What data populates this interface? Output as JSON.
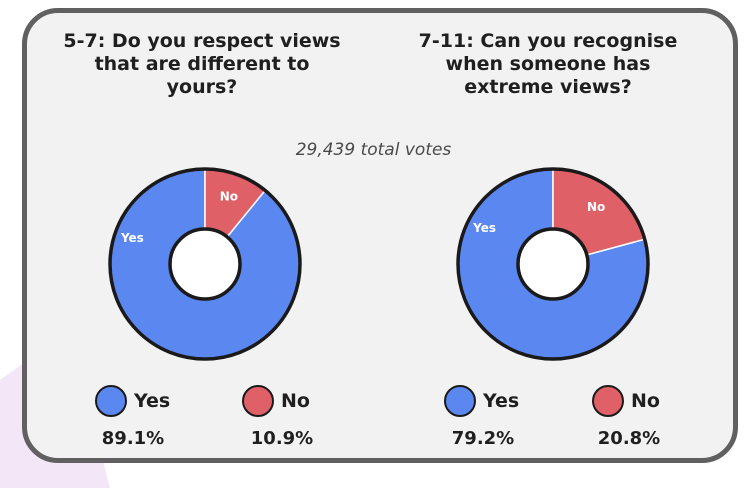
{
  "total_votes": "29,439 total votes",
  "colors": {
    "yes": "#5b87f0",
    "no": "#e06068",
    "card_background": "#f2f2f2",
    "card_border": "#606060"
  },
  "chart_data": [
    {
      "type": "pie",
      "donut": true,
      "title": "5-7: Do you respect views that are different to yours?",
      "slices": [
        {
          "label": "Yes",
          "value": 89.1,
          "value_label": "89.1%",
          "color": "#5b87f0"
        },
        {
          "label": "No",
          "value": 10.9,
          "value_label": "10.9%",
          "color": "#e06068"
        }
      ],
      "legend": [
        "Yes",
        "No"
      ],
      "legend_position": "bottom"
    },
    {
      "type": "pie",
      "donut": true,
      "title": "7-11: Can you recognise when someone has extreme views?",
      "slices": [
        {
          "label": "Yes",
          "value": 79.2,
          "value_label": "79.2%",
          "color": "#5b87f0"
        },
        {
          "label": "No",
          "value": 20.8,
          "value_label": "20.8%",
          "color": "#e06068"
        }
      ],
      "legend": [
        "Yes",
        "No"
      ],
      "legend_position": "bottom"
    }
  ]
}
